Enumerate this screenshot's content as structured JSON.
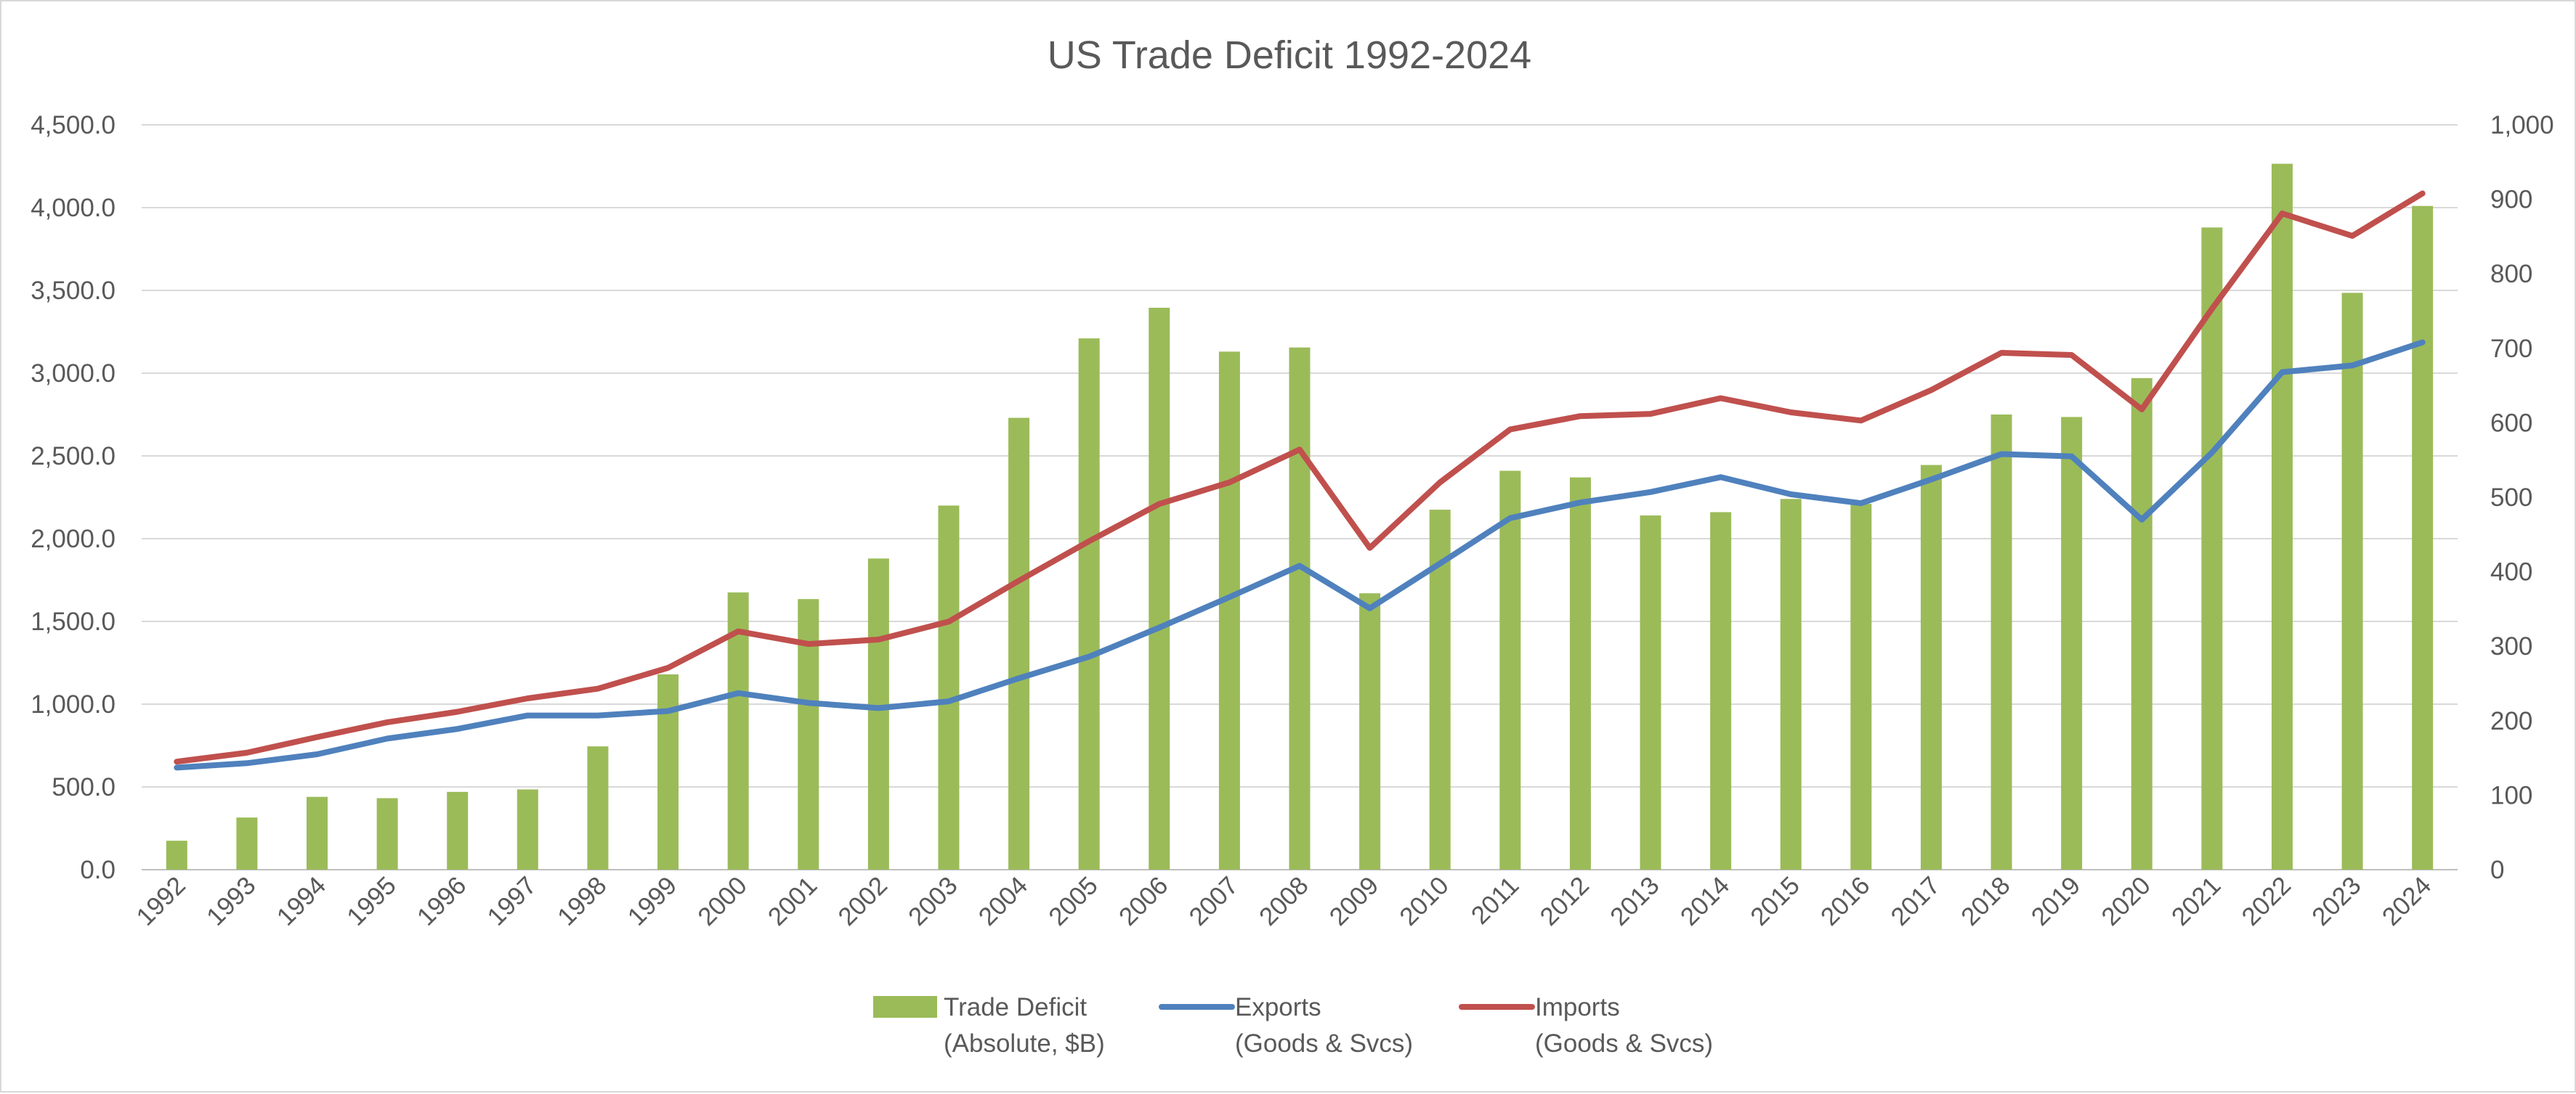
{
  "chart_data": {
    "type": "bar",
    "title": "US Trade Deficit 1992-2024",
    "categories": [
      "1992",
      "1993",
      "1994",
      "1995",
      "1996",
      "1997",
      "1998",
      "1999",
      "2000",
      "2001",
      "2002",
      "2003",
      "2004",
      "2005",
      "2006",
      "2007",
      "2008",
      "2009",
      "2010",
      "2011",
      "2012",
      "2013",
      "2014",
      "2015",
      "2016",
      "2017",
      "2018",
      "2019",
      "2020",
      "2021",
      "2022",
      "2023",
      "2024"
    ],
    "series": [
      {
        "name": "Trade Deficit",
        "name_line2": "(Absolute, $B)",
        "kind": "bar",
        "axis": "left",
        "color": "#9bbb59",
        "values": [
          175,
          315,
          440,
          432,
          470,
          485,
          745,
          1180,
          1675,
          1635,
          1880,
          2200,
          2730,
          3210,
          3395,
          3130,
          3155,
          1670,
          2175,
          2410,
          2370,
          2140,
          2160,
          2240,
          2210,
          2445,
          2750,
          2735,
          2970,
          3880,
          4265,
          3485,
          4010
        ]
      },
      {
        "name": "Exports",
        "name_line2": "(Goods & Svcs)",
        "kind": "line",
        "axis": "right",
        "color": "#4f81bd",
        "values": [
          137,
          143,
          155,
          176,
          189,
          207,
          207,
          213,
          237,
          224,
          217,
          226,
          257,
          286,
          325,
          366,
          408,
          351,
          411,
          472,
          493,
          507,
          527,
          504,
          492,
          524,
          558,
          555,
          470,
          560,
          668,
          677,
          708
        ]
      },
      {
        "name": "Imports",
        "name_line2": "(Goods & Svcs)",
        "kind": "line",
        "axis": "right",
        "color": "#c0504d",
        "values": [
          145,
          157,
          178,
          198,
          212,
          230,
          243,
          271,
          320,
          303,
          309,
          333,
          388,
          441,
          491,
          520,
          564,
          432,
          520,
          591,
          609,
          612,
          633,
          614,
          603,
          644,
          694,
          691,
          618,
          753,
          881,
          851,
          908
        ]
      }
    ],
    "y_left": {
      "min": 0,
      "max": 4500,
      "step": 500,
      "tick_labels": [
        "0.0",
        "500.0",
        "1,000.0",
        "1,500.0",
        "2,000.0",
        "2,500.0",
        "3,000.0",
        "3,500.0",
        "4,000.0",
        "4,500.0"
      ]
    },
    "y_right": {
      "min": 0,
      "max": 1000,
      "step": 100,
      "tick_labels": [
        "0",
        "100",
        "200",
        "300",
        "400",
        "500",
        "600",
        "700",
        "800",
        "900",
        "1,000"
      ]
    },
    "xlabel": "",
    "ylabel": "",
    "grid": true,
    "legend_position": "bottom"
  }
}
